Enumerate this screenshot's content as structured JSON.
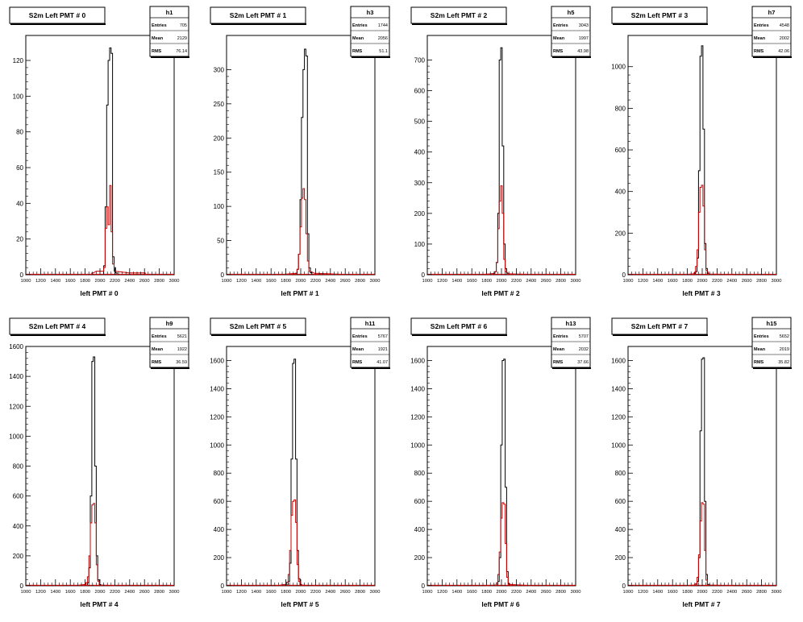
{
  "chart_data": [
    {
      "type": "histogram",
      "title": "S2m Left PMT # 0",
      "hist_name": "h1",
      "stats": {
        "entries_label": "Entries",
        "entries": "705",
        "mean_label": "Mean",
        "mean": "2129",
        "rms_label": "RMS",
        "rms": "76.14"
      },
      "xlabel": "left PMT # 0",
      "xlim": [
        1000,
        3000
      ],
      "ylim": [
        0,
        134
      ],
      "x_ticks": [
        "1000",
        "1200",
        "1400",
        "1600",
        "1800",
        "2000",
        "2200",
        "2400",
        "2600",
        "2800",
        "3000"
      ],
      "y_ticks": [
        "0",
        "20",
        "40",
        "60",
        "80",
        "100",
        "120"
      ],
      "y_tick_values": [
        0,
        20,
        40,
        60,
        80,
        100,
        120
      ],
      "series": [
        {
          "color": "#000000",
          "x": [
            2060,
            2080,
            2100,
            2120,
            2140,
            2160,
            2180,
            2200,
            2220
          ],
          "y": [
            5,
            38,
            95,
            120,
            127,
            124,
            10,
            4,
            1
          ]
        },
        {
          "color": "#cc0000",
          "x": [
            1900,
            1960,
            2040,
            2060,
            2080,
            2100,
            2120,
            2140,
            2160,
            2180,
            2200,
            2400,
            2600
          ],
          "y": [
            1,
            2,
            2,
            4,
            26,
            38,
            28,
            50,
            24,
            6,
            2,
            1,
            1
          ]
        }
      ]
    },
    {
      "type": "histogram",
      "title": "S2m Left PMT # 1",
      "hist_name": "h3",
      "stats": {
        "entries_label": "Entries",
        "entries": "1744",
        "mean_label": "Mean",
        "mean": "2056",
        "rms_label": "RMS",
        "rms": "51.1"
      },
      "xlabel": "left PMT # 1",
      "xlim": [
        1000,
        3000
      ],
      "ylim": [
        0,
        350
      ],
      "x_ticks": [
        "1000",
        "1200",
        "1400",
        "1600",
        "1800",
        "2000",
        "2200",
        "2400",
        "2600",
        "2800",
        "3000"
      ],
      "y_ticks": [
        "0",
        "50",
        "100",
        "150",
        "200",
        "250",
        "300"
      ],
      "y_tick_values": [
        0,
        50,
        100,
        150,
        200,
        250,
        300
      ],
      "series": [
        {
          "color": "#000000",
          "x": [
            1940,
            1960,
            1980,
            2000,
            2020,
            2040,
            2060,
            2080,
            2100,
            2120,
            2140
          ],
          "y": [
            2,
            8,
            30,
            110,
            230,
            300,
            330,
            320,
            60,
            10,
            3
          ]
        },
        {
          "color": "#cc0000",
          "x": [
            1800,
            1940,
            1960,
            1980,
            2000,
            2020,
            2040,
            2060,
            2080,
            2100,
            2120,
            2200,
            2500
          ],
          "y": [
            1,
            2,
            8,
            30,
            70,
            112,
            126,
            110,
            60,
            20,
            5,
            2,
            1
          ]
        }
      ]
    },
    {
      "type": "histogram",
      "title": "S2m Left PMT # 2",
      "hist_name": "h5",
      "stats": {
        "entries_label": "Entries",
        "entries": "3043",
        "mean_label": "Mean",
        "mean": "1997",
        "rms_label": "RMS",
        "rms": "43.98"
      },
      "xlabel": "left PMT # 2",
      "xlim": [
        1000,
        3000
      ],
      "ylim": [
        0,
        780
      ],
      "x_ticks": [
        "1000",
        "1200",
        "1400",
        "1600",
        "1800",
        "2000",
        "2200",
        "2400",
        "2600",
        "2800",
        "3000"
      ],
      "y_ticks": [
        "0",
        "100",
        "200",
        "300",
        "400",
        "500",
        "600",
        "700"
      ],
      "y_tick_values": [
        0,
        100,
        200,
        300,
        400,
        500,
        600,
        700
      ],
      "series": [
        {
          "color": "#000000",
          "x": [
            1900,
            1920,
            1940,
            1960,
            1980,
            2000,
            2020,
            2040,
            2060,
            2080,
            2100
          ],
          "y": [
            3,
            10,
            40,
            200,
            700,
            740,
            420,
            100,
            20,
            5,
            2
          ]
        },
        {
          "color": "#cc0000",
          "x": [
            1800,
            1900,
            1920,
            1940,
            1960,
            1980,
            2000,
            2020,
            2040,
            2060,
            2100,
            2400
          ],
          "y": [
            2,
            4,
            10,
            40,
            150,
            240,
            290,
            200,
            50,
            10,
            3,
            1
          ]
        }
      ]
    },
    {
      "type": "histogram",
      "title": "S2m Left PMT # 3",
      "hist_name": "h7",
      "stats": {
        "entries_label": "Entries",
        "entries": "4548",
        "mean_label": "Mean",
        "mean": "2002",
        "rms_label": "RMS",
        "rms": "42.06"
      },
      "xlabel": "left PMT # 3",
      "xlim": [
        1000,
        3000
      ],
      "ylim": [
        0,
        1150
      ],
      "x_ticks": [
        "1000",
        "1200",
        "1400",
        "1600",
        "1800",
        "2000",
        "2200",
        "2400",
        "2600",
        "2800",
        "3000"
      ],
      "y_ticks": [
        "0",
        "200",
        "400",
        "600",
        "800",
        "1000"
      ],
      "y_tick_values": [
        0,
        200,
        400,
        600,
        800,
        1000
      ],
      "series": [
        {
          "color": "#000000",
          "x": [
            1900,
            1920,
            1940,
            1960,
            1980,
            2000,
            2020,
            2040,
            2060,
            2080,
            2100
          ],
          "y": [
            3,
            15,
            80,
            500,
            1050,
            1100,
            700,
            150,
            30,
            5,
            2
          ]
        },
        {
          "color": "#cc0000",
          "x": [
            1800,
            1880,
            1900,
            1920,
            1940,
            1960,
            1980,
            2000,
            2020,
            2040,
            2060,
            2100,
            2400
          ],
          "y": [
            2,
            4,
            10,
            40,
            120,
            300,
            420,
            430,
            330,
            120,
            20,
            3,
            1
          ]
        }
      ]
    },
    {
      "type": "histogram",
      "title": "S2m Left PMT # 4",
      "hist_name": "h9",
      "stats": {
        "entries_label": "Entries",
        "entries": "5621",
        "mean_label": "Mean",
        "mean": "1922",
        "rms_label": "RMS",
        "rms": "36.59"
      },
      "xlabel": "left PMT # 4",
      "xlim": [
        1000,
        3000
      ],
      "ylim": [
        0,
        1600
      ],
      "x_ticks": [
        "1000",
        "1200",
        "1400",
        "1600",
        "1800",
        "2000",
        "2200",
        "2400",
        "2600",
        "2800",
        "3000"
      ],
      "y_ticks": [
        "0",
        "200",
        "400",
        "600",
        "800",
        "1000",
        "1200",
        "1400",
        "1600"
      ],
      "y_tick_values": [
        0,
        200,
        400,
        600,
        800,
        1000,
        1200,
        1400,
        1600
      ],
      "series": [
        {
          "color": "#000000",
          "x": [
            1820,
            1840,
            1860,
            1880,
            1900,
            1920,
            1940,
            1960,
            1980,
            2000,
            2020
          ],
          "y": [
            3,
            20,
            120,
            600,
            1500,
            1530,
            800,
            200,
            40,
            8,
            2
          ]
        },
        {
          "color": "#cc0000",
          "x": [
            1700,
            1800,
            1820,
            1840,
            1860,
            1880,
            1900,
            1920,
            1940,
            1960,
            1980,
            2000,
            2200
          ],
          "y": [
            3,
            8,
            20,
            60,
            200,
            420,
            540,
            550,
            420,
            140,
            30,
            5,
            1
          ]
        }
      ]
    },
    {
      "type": "histogram",
      "title": "S2m Left PMT # 5",
      "hist_name": "h11",
      "stats": {
        "entries_label": "Entries",
        "entries": "5767",
        "mean_label": "Mean",
        "mean": "1921",
        "rms_label": "RMS",
        "rms": "41.07"
      },
      "xlabel": "left PMT # 5",
      "xlim": [
        1000,
        3000
      ],
      "ylim": [
        0,
        1700
      ],
      "x_ticks": [
        "1000",
        "1200",
        "1400",
        "1600",
        "1800",
        "2000",
        "2200",
        "2400",
        "2600",
        "2800",
        "3000"
      ],
      "y_ticks": [
        "0",
        "200",
        "400",
        "600",
        "800",
        "1000",
        "1200",
        "1400",
        "1600"
      ],
      "y_tick_values": [
        0,
        200,
        400,
        600,
        800,
        1000,
        1200,
        1400,
        1600
      ],
      "series": [
        {
          "color": "#000000",
          "x": [
            1820,
            1840,
            1860,
            1880,
            1900,
            1920,
            1940,
            1960,
            1980,
            2000,
            2020
          ],
          "y": [
            5,
            30,
            160,
            900,
            1580,
            1610,
            900,
            250,
            50,
            10,
            3
          ]
        },
        {
          "color": "#cc0000",
          "x": [
            1700,
            1800,
            1820,
            1840,
            1860,
            1880,
            1900,
            1920,
            1940,
            1960,
            1980,
            2000,
            2200
          ],
          "y": [
            3,
            10,
            25,
            80,
            250,
            500,
            600,
            610,
            450,
            150,
            30,
            5,
            1
          ]
        }
      ]
    },
    {
      "type": "histogram",
      "title": "S2m Left PMT # 6",
      "hist_name": "h13",
      "stats": {
        "entries_label": "Entries",
        "entries": "5707",
        "mean_label": "Mean",
        "mean": "2032",
        "rms_label": "RMS",
        "rms": "37.66"
      },
      "xlabel": "left PMT # 6",
      "xlim": [
        1000,
        3000
      ],
      "ylim": [
        0,
        1700
      ],
      "x_ticks": [
        "1000",
        "1200",
        "1400",
        "1600",
        "1800",
        "2000",
        "2200",
        "2400",
        "2600",
        "2800",
        "3000"
      ],
      "y_ticks": [
        "0",
        "200",
        "400",
        "600",
        "800",
        "1000",
        "1200",
        "1400",
        "1600"
      ],
      "y_tick_values": [
        0,
        200,
        400,
        600,
        800,
        1000,
        1200,
        1400,
        1600
      ],
      "series": [
        {
          "color": "#000000",
          "x": [
            1940,
            1960,
            1980,
            2000,
            2020,
            2040,
            2060,
            2080,
            2100,
            2120
          ],
          "y": [
            5,
            30,
            200,
            1000,
            1600,
            1610,
            700,
            100,
            15,
            3
          ]
        },
        {
          "color": "#cc0000",
          "x": [
            1800,
            1920,
            1940,
            1960,
            1980,
            2000,
            2020,
            2040,
            2060,
            2080,
            2100,
            2400
          ],
          "y": [
            2,
            5,
            20,
            80,
            240,
            480,
            590,
            580,
            300,
            60,
            10,
            1
          ]
        }
      ]
    },
    {
      "type": "histogram",
      "title": "S2m Left PMT # 7",
      "hist_name": "h15",
      "stats": {
        "entries_label": "Entries",
        "entries": "5652",
        "mean_label": "Mean",
        "mean": "2019",
        "rms_label": "RMS",
        "rms": "35.82"
      },
      "xlabel": "left PMT # 7",
      "xlim": [
        1000,
        3000
      ],
      "ylim": [
        0,
        1700
      ],
      "x_ticks": [
        "1000",
        "1200",
        "1400",
        "1600",
        "1800",
        "2000",
        "2200",
        "2400",
        "2600",
        "2800",
        "3000"
      ],
      "y_ticks": [
        "0",
        "200",
        "400",
        "600",
        "800",
        "1000",
        "1200",
        "1400",
        "1600"
      ],
      "y_tick_values": [
        0,
        200,
        400,
        600,
        800,
        1000,
        1200,
        1400,
        1600
      ],
      "series": [
        {
          "color": "#000000",
          "x": [
            1920,
            1940,
            1960,
            1980,
            2000,
            2020,
            2040,
            2060,
            2080,
            2100
          ],
          "y": [
            5,
            30,
            200,
            1100,
            1610,
            1620,
            600,
            80,
            10,
            2
          ]
        },
        {
          "color": "#cc0000",
          "x": [
            1800,
            1900,
            1920,
            1940,
            1960,
            1980,
            2000,
            2020,
            2040,
            2060,
            2080,
            2400
          ],
          "y": [
            2,
            5,
            15,
            60,
            220,
            460,
            590,
            580,
            250,
            40,
            5,
            1
          ]
        }
      ]
    }
  ]
}
